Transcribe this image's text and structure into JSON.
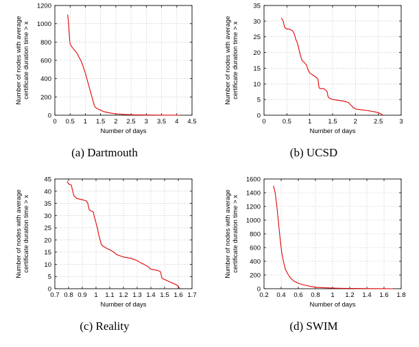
{
  "chart_data": [
    {
      "type": "line",
      "caption": "(a) Dartmouth",
      "xlabel": "Number of days",
      "ylabel": [
        "Number of nodes with average",
        "certificate duration time > x"
      ],
      "xlim": [
        0,
        4.5
      ],
      "ylim": [
        0,
        1200
      ],
      "xticks": [
        0,
        0.5,
        1,
        1.5,
        2,
        2.5,
        3,
        3.5,
        4,
        4.5
      ],
      "xtick_labels": [
        "0",
        "0.5",
        "1",
        "1.5",
        "2",
        "2.5",
        "3",
        "3.5",
        "4",
        "4.5"
      ],
      "yticks": [
        0,
        200,
        400,
        600,
        800,
        1000,
        1200
      ],
      "ytick_labels": [
        "0",
        "200",
        "400",
        "600",
        "800",
        "1000",
        "1200"
      ],
      "grid": true,
      "line_color": "#e00000",
      "series": [
        {
          "x": [
            0.42,
            0.45,
            0.48,
            0.5,
            0.55,
            0.6,
            0.65,
            0.7,
            0.75,
            0.8,
            0.85,
            0.9,
            0.95,
            1.0,
            1.05,
            1.1,
            1.15,
            1.2,
            1.25,
            1.3,
            1.35,
            1.4,
            1.5,
            1.6,
            1.8,
            2.0,
            2.3,
            2.6,
            3.0,
            3.5,
            4.0,
            4.1
          ],
          "y": [
            1100,
            1000,
            850,
            780,
            750,
            730,
            710,
            690,
            665,
            630,
            600,
            560,
            510,
            460,
            400,
            340,
            280,
            220,
            160,
            100,
            80,
            70,
            55,
            40,
            25,
            15,
            8,
            4,
            2,
            1,
            0,
            0
          ]
        }
      ]
    },
    {
      "type": "line",
      "caption": "(b) UCSD",
      "xlabel": "Number of days",
      "ylabel": [
        "Number of nodes with average",
        "certificate duration time > x"
      ],
      "xlim": [
        0,
        3
      ],
      "ylim": [
        0,
        35
      ],
      "xticks": [
        0,
        0.5,
        1,
        1.5,
        2,
        2.5,
        3
      ],
      "xtick_labels": [
        "0",
        "0.5",
        "1",
        "1.5",
        "2",
        "2.5",
        "3"
      ],
      "yticks": [
        0,
        5,
        10,
        15,
        20,
        25,
        30,
        35
      ],
      "ytick_labels": [
        "0",
        "5",
        "10",
        "15",
        "20",
        "25",
        "30",
        "35"
      ],
      "grid": true,
      "line_color": "#e00000",
      "series": [
        {
          "x": [
            0.38,
            0.42,
            0.45,
            0.5,
            0.55,
            0.62,
            0.66,
            0.7,
            0.72,
            0.75,
            0.78,
            0.8,
            0.83,
            0.87,
            0.9,
            0.93,
            0.95,
            0.98,
            1.0,
            1.05,
            1.1,
            1.15,
            1.18,
            1.2,
            1.22,
            1.3,
            1.35,
            1.38,
            1.4,
            1.42,
            1.5,
            1.6,
            1.75,
            1.85,
            1.88,
            1.95,
            2.0,
            2.1,
            2.25,
            2.45,
            2.5,
            2.55,
            2.6
          ],
          "y": [
            31,
            30,
            28,
            27.5,
            27.5,
            27,
            26,
            24,
            23.5,
            22,
            20,
            19,
            17.5,
            17,
            16.5,
            16,
            15,
            14,
            13.5,
            13,
            12.5,
            12,
            11.5,
            9,
            8.5,
            8.5,
            8,
            7.5,
            6,
            5.5,
            5,
            4.8,
            4.5,
            4,
            3.5,
            2.5,
            2,
            1.8,
            1.5,
            1,
            0.8,
            0.5,
            0
          ]
        }
      ]
    },
    {
      "type": "line",
      "caption": "(c) Reality",
      "xlabel": "Number of days",
      "ylabel": [
        "Number of nodes with average",
        "certificate duration time > x"
      ],
      "xlim": [
        0.7,
        1.7
      ],
      "ylim": [
        0,
        45
      ],
      "xticks": [
        0.7,
        0.8,
        0.9,
        1,
        1.1,
        1.2,
        1.3,
        1.4,
        1.5,
        1.6,
        1.7
      ],
      "xtick_labels": [
        "0.7",
        "0.8",
        "0.9",
        "1",
        "1.1",
        "1.2",
        "1.3",
        "1.4",
        "1.5",
        "1.6",
        "1.7"
      ],
      "yticks": [
        0,
        5,
        10,
        15,
        20,
        25,
        30,
        35,
        40,
        45
      ],
      "ytick_labels": [
        "0",
        "5",
        "10",
        "15",
        "20",
        "25",
        "30",
        "35",
        "40",
        "45"
      ],
      "grid": true,
      "line_color": "#e00000",
      "series": [
        {
          "x": [
            0.79,
            0.8,
            0.82,
            0.83,
            0.84,
            0.86,
            0.9,
            0.93,
            0.94,
            0.95,
            0.96,
            0.98,
            0.99,
            1.0,
            1.01,
            1.02,
            1.03,
            1.04,
            1.05,
            1.08,
            1.1,
            1.13,
            1.15,
            1.2,
            1.25,
            1.28,
            1.3,
            1.33,
            1.35,
            1.38,
            1.4,
            1.45,
            1.47,
            1.48,
            1.49,
            1.5,
            1.53,
            1.55,
            1.57,
            1.59,
            1.6,
            1.61
          ],
          "y": [
            44,
            43,
            42.5,
            40,
            38,
            37,
            36.5,
            36,
            35,
            32.5,
            32,
            31.5,
            29,
            27,
            25,
            22,
            20,
            18,
            17.5,
            16.5,
            16,
            15,
            14,
            13,
            12.5,
            12,
            11.5,
            10.5,
            10,
            9,
            8,
            7.5,
            7,
            4.5,
            4,
            3.8,
            3,
            2.5,
            2,
            1.5,
            1,
            0
          ]
        }
      ]
    },
    {
      "type": "line",
      "caption": "(d) SWIM",
      "xlabel": "Number of days",
      "ylabel": [
        "Number of nodes with average",
        "certificate duration time > x"
      ],
      "xlim": [
        0.2,
        1.8
      ],
      "ylim": [
        0,
        1600
      ],
      "xticks": [
        0.2,
        0.4,
        0.6,
        0.8,
        1,
        1.2,
        1.4,
        1.6,
        1.8
      ],
      "xtick_labels": [
        "0.2",
        "0.4",
        "0.6",
        "0.8",
        "1",
        "1.2",
        "1.4",
        "1.6",
        "1.8"
      ],
      "yticks": [
        0,
        200,
        400,
        600,
        800,
        1000,
        1200,
        1400,
        1600
      ],
      "ytick_labels": [
        "0",
        "200",
        "400",
        "600",
        "800",
        "1000",
        "1200",
        "1400",
        "1600"
      ],
      "grid": true,
      "line_color": "#e00000",
      "series": [
        {
          "x": [
            0.31,
            0.33,
            0.35,
            0.37,
            0.39,
            0.41,
            0.43,
            0.45,
            0.48,
            0.5,
            0.53,
            0.55,
            0.6,
            0.65,
            0.7,
            0.75,
            0.8,
            0.9,
            1.0,
            1.1,
            1.2,
            1.4,
            1.6,
            1.7
          ],
          "y": [
            1500,
            1400,
            1200,
            950,
            700,
            500,
            380,
            280,
            210,
            170,
            130,
            110,
            80,
            60,
            45,
            32,
            22,
            14,
            9,
            6,
            4,
            2,
            1,
            0
          ]
        }
      ]
    }
  ]
}
